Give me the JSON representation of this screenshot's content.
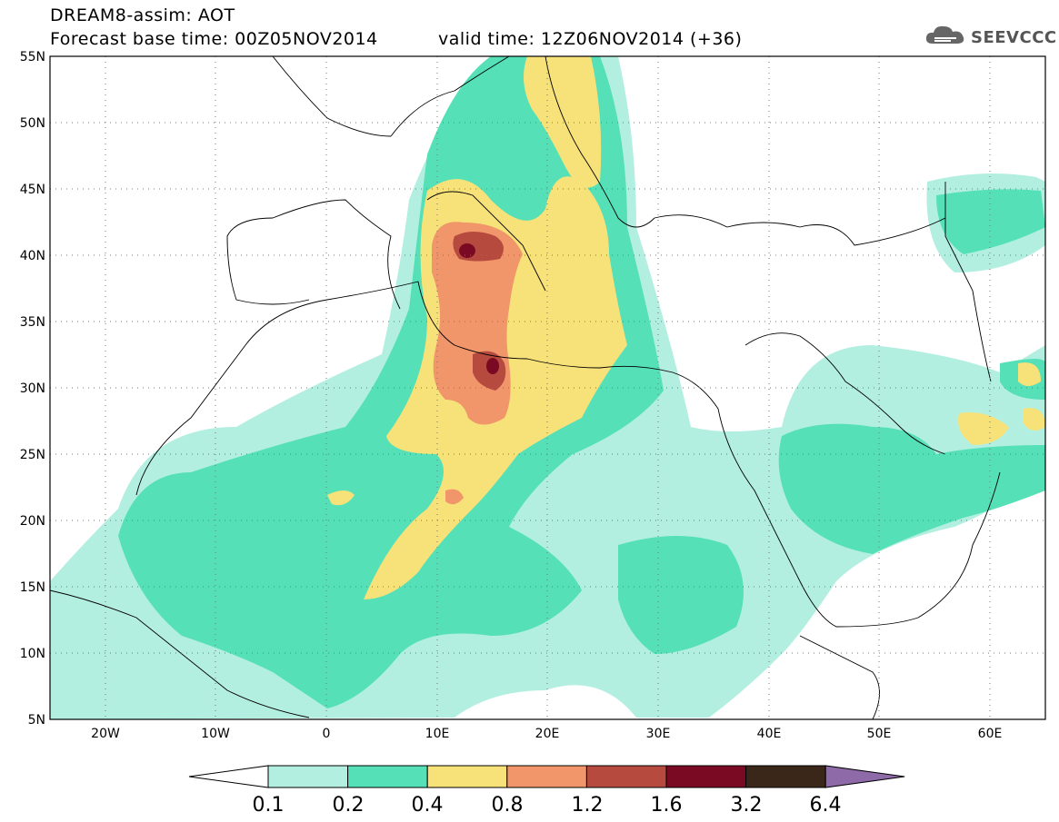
{
  "header": {
    "title": "DREAM8-assim: AOT",
    "base_time": "Forecast base time: 00Z05NOV2014",
    "valid_time": "valid time: 12Z06NOV2014 (+36)",
    "logo_text": "SEEVCCC"
  },
  "map": {
    "lon_labels": [
      "20W",
      "10W",
      "0",
      "10E",
      "20E",
      "30E",
      "40E",
      "50E",
      "60E"
    ],
    "lat_labels": [
      "55N",
      "50N",
      "45N",
      "40N",
      "35N",
      "30N",
      "25N",
      "20N",
      "15N",
      "10N",
      "5N"
    ],
    "lon_range": [
      -25,
      65
    ],
    "lat_range": [
      5,
      55
    ],
    "grid": "dotted"
  },
  "legend": {
    "labels": [
      "0.1",
      "0.2",
      "0.4",
      "0.8",
      "1.2",
      "1.6",
      "3.2",
      "6.4"
    ],
    "colors": [
      "#ffffff",
      "#b3efe0",
      "#55e0b8",
      "#f7e27a",
      "#f0966a",
      "#b64a3f",
      "#7a0a24",
      "#3b261a",
      "#8e6aa8"
    ]
  }
}
